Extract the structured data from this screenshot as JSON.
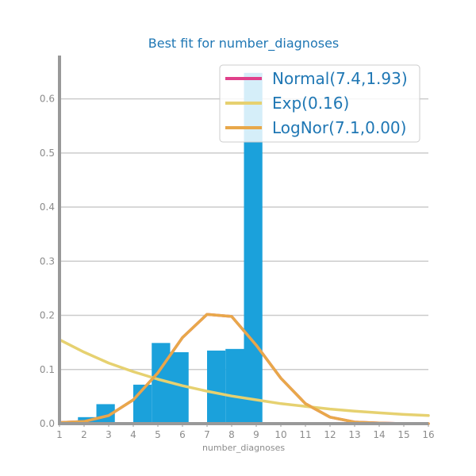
{
  "chart_data": {
    "type": "bar",
    "title": "Best fit for number_diagnoses",
    "xlabel": "number_diagnoses",
    "ylabel": "",
    "xlim": [
      1,
      16
    ],
    "ylim": [
      0,
      0.68
    ],
    "x_ticks": [
      1,
      2,
      3,
      4,
      5,
      6,
      7,
      8,
      9,
      10,
      11,
      12,
      13,
      14,
      15,
      16
    ],
    "y_ticks": [
      0.0,
      0.1,
      0.2,
      0.3,
      0.4,
      0.5,
      0.6
    ],
    "grid": true,
    "legend_position": "top-right",
    "histogram": {
      "bins": [
        {
          "x0": 1.0,
          "x1": 1.75,
          "value": 0.0
        },
        {
          "x0": 1.75,
          "x1": 2.5,
          "value": 0.012
        },
        {
          "x0": 2.5,
          "x1": 3.25,
          "value": 0.036
        },
        {
          "x0": 3.25,
          "x1": 4.0,
          "value": 0.0
        },
        {
          "x0": 4.0,
          "x1": 4.75,
          "value": 0.072
        },
        {
          "x0": 4.75,
          "x1": 5.5,
          "value": 0.149
        },
        {
          "x0": 5.5,
          "x1": 6.25,
          "value": 0.132
        },
        {
          "x0": 6.25,
          "x1": 7.0,
          "value": 0.0
        },
        {
          "x0": 7.0,
          "x1": 7.75,
          "value": 0.135
        },
        {
          "x0": 7.75,
          "x1": 8.5,
          "value": 0.138
        },
        {
          "x0": 8.5,
          "x1": 9.25,
          "value": 0.648
        }
      ]
    },
    "series": [
      {
        "name": "Normal(7.4,1.93)",
        "type": "line",
        "x": [
          1,
          2,
          3,
          4,
          5,
          6,
          7,
          8,
          9,
          10,
          11,
          12,
          13,
          14,
          15,
          16
        ],
        "values": [
          0.002,
          0.004,
          0.015,
          0.044,
          0.094,
          0.159,
          0.202,
          0.198,
          0.145,
          0.084,
          0.037,
          0.012,
          0.003,
          0.001,
          0.0,
          0.0
        ]
      },
      {
        "name": "Exp(0.16)",
        "type": "line",
        "x": [
          1,
          2,
          3,
          4,
          5,
          6,
          7,
          8,
          9,
          10,
          11,
          12,
          13,
          14,
          15,
          16
        ],
        "values": [
          0.155,
          0.132,
          0.112,
          0.096,
          0.082,
          0.07,
          0.06,
          0.051,
          0.044,
          0.037,
          0.032,
          0.027,
          0.023,
          0.02,
          0.017,
          0.015
        ]
      },
      {
        "name": "LogNor(7.1,0.00)",
        "type": "line",
        "x": [
          1,
          2,
          3,
          4,
          5,
          6,
          7,
          8,
          9,
          10,
          11,
          12,
          13,
          14,
          15,
          16
        ],
        "values": [
          0.002,
          0.004,
          0.015,
          0.044,
          0.094,
          0.159,
          0.202,
          0.198,
          0.145,
          0.084,
          0.037,
          0.012,
          0.003,
          0.001,
          0.0,
          0.0
        ]
      }
    ]
  },
  "colors": {
    "bars": "#1ba1db",
    "normal": "#e0408a",
    "exp": "#e6d170",
    "lognormal": "#e8a84a",
    "grid": "#cccccc",
    "axis": "#999999",
    "title": "#1f77b4"
  }
}
